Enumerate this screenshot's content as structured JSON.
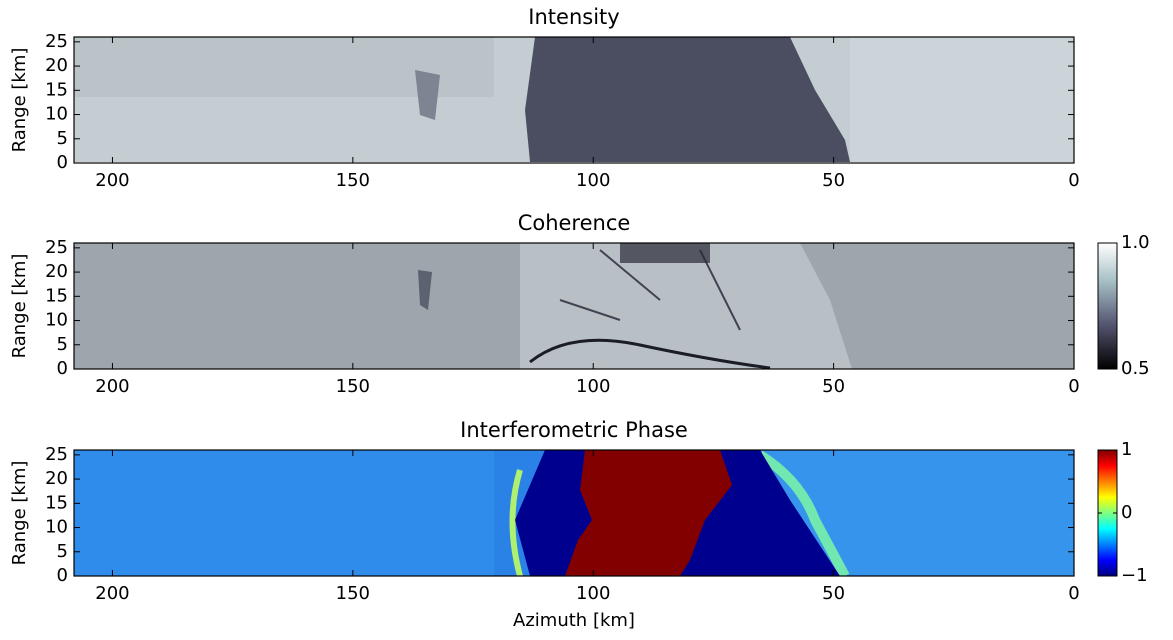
{
  "chart_data": [
    {
      "type": "heatmap",
      "title": "Intensity",
      "y_label": "Range [km]",
      "colormap": "bone",
      "xlim": [
        208,
        0
      ],
      "ylim": [
        0,
        26
      ],
      "xticks": [
        200,
        150,
        100,
        50,
        0
      ],
      "yticks": [
        0,
        5,
        10,
        15,
        20,
        25
      ]
    },
    {
      "type": "heatmap",
      "title": "Coherence",
      "y_label": "Range [km]",
      "colormap": "bone",
      "xlim": [
        208,
        0
      ],
      "ylim": [
        0,
        26
      ],
      "xticks": [
        200,
        150,
        100,
        50,
        0
      ],
      "yticks": [
        0,
        5,
        10,
        15,
        20,
        25
      ],
      "colorbar": {
        "lim": [
          0.5,
          1.0
        ],
        "ticks": [
          0.5,
          {
            "value": 1.0,
            "label": "1.0"
          }
        ]
      }
    },
    {
      "type": "heatmap",
      "title": "Interferometric Phase",
      "y_label": "Range [km]",
      "x_label": "Azimuth [km]",
      "colormap": "jet",
      "xlim": [
        208,
        0
      ],
      "ylim": [
        0,
        26
      ],
      "xticks": [
        200,
        150,
        100,
        50,
        0
      ],
      "yticks": [
        0,
        5,
        10,
        15,
        20,
        25
      ],
      "colorbar": {
        "lim": [
          -1,
          1
        ],
        "ticks": [
          {
            "value": -1,
            "label": "−1"
          },
          0,
          1
        ]
      }
    }
  ]
}
